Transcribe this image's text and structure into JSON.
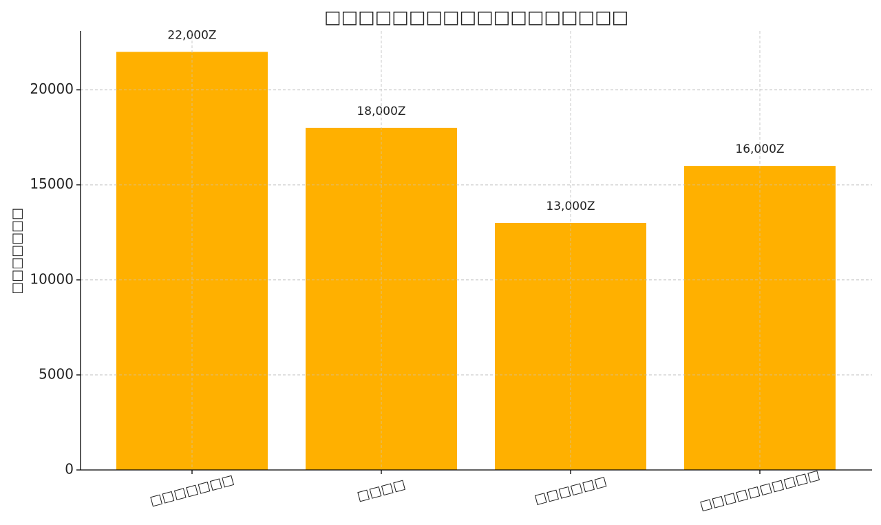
{
  "chart_data": {
    "type": "bar",
    "title": "□□□□□□□□□□□□□□□□□□",
    "y_label": "□□□□□□□",
    "categories": [
      "□□□□□□□",
      "□□□□",
      "□□□□□□",
      "□□□□□□□□□□"
    ],
    "values": [
      22000,
      18000,
      13000,
      16000
    ],
    "value_labels": [
      "22,000Z",
      "18,000Z",
      "13,000Z",
      "16,000Z"
    ],
    "color": "#ffb000",
    "ylim": [
      0,
      23100
    ],
    "yticks": [
      0,
      5000,
      10000,
      15000,
      20000
    ],
    "grid": true
  }
}
